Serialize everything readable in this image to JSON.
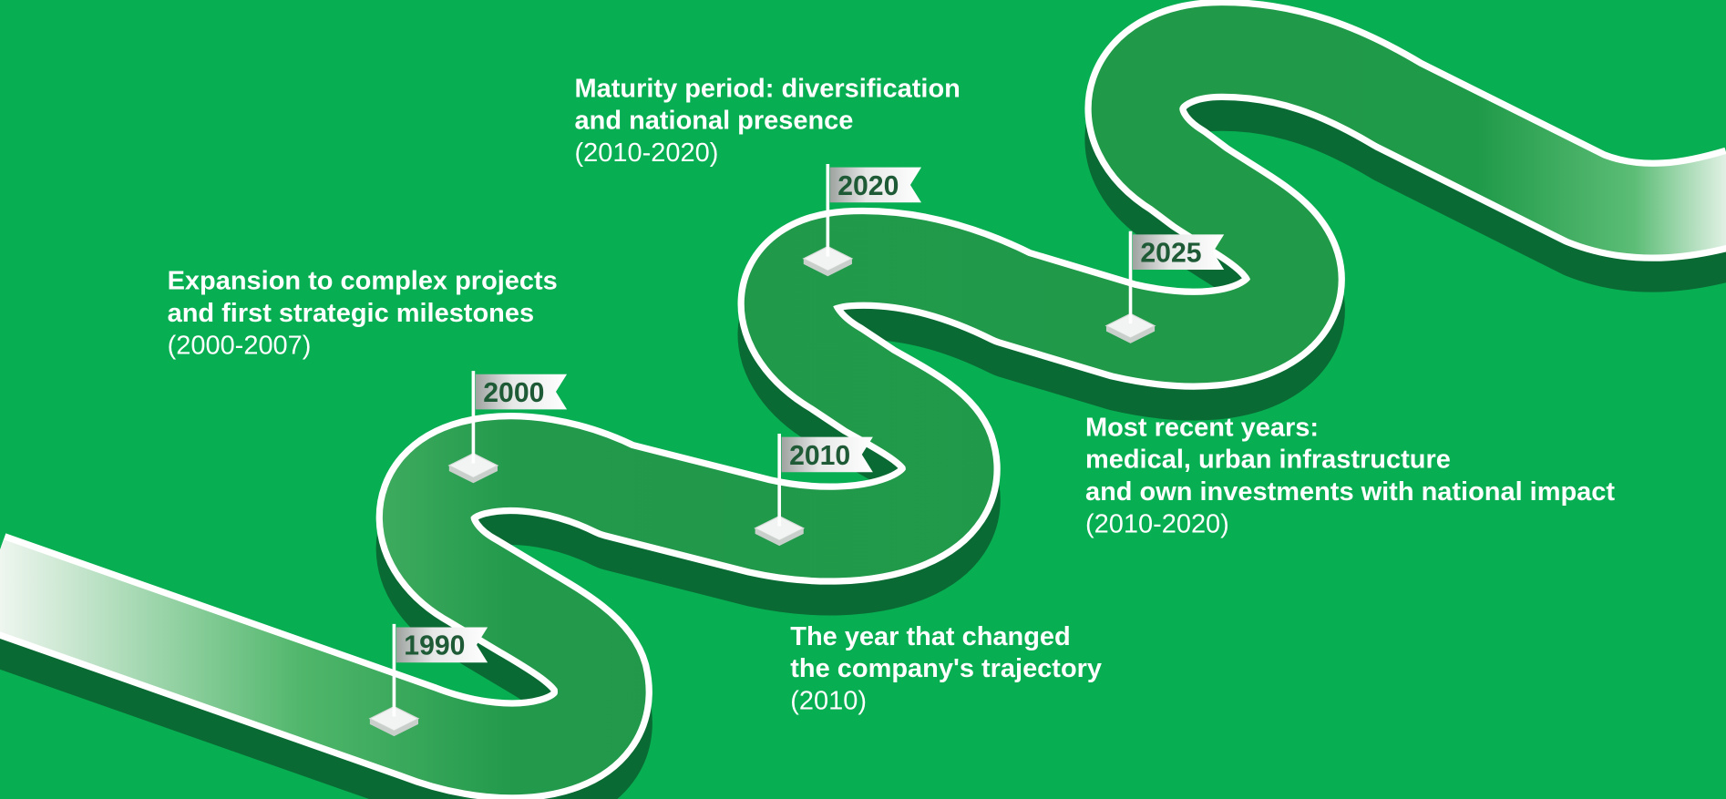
{
  "milestones": [
    {
      "year": "1990"
    },
    {
      "year": "2000"
    },
    {
      "year": "2010"
    },
    {
      "year": "2020"
    },
    {
      "year": "2025"
    }
  ],
  "notes": [
    {
      "lines": [
        "Expansion to complex projects",
        "and first strategic milestones"
      ],
      "period": "(2000-2007)"
    },
    {
      "lines": [
        "Maturity period: diversification",
        "and national presence"
      ],
      "period": "(2010-2020)"
    },
    {
      "lines": [
        "Most recent years:",
        "medical, urban infrastructure",
        "and own investments with national impact"
      ],
      "period": "(2010-2020)"
    },
    {
      "lines": [
        "The year that changed",
        "the company's trajectory"
      ],
      "period": "(2010)"
    }
  ]
}
